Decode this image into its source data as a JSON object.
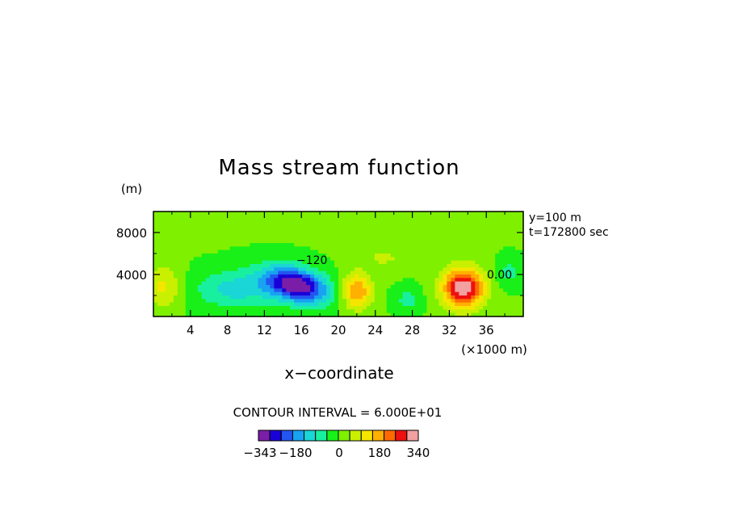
{
  "chart_data": {
    "type": "contour",
    "title": "Mass stream function",
    "xlabel": "x−coordinate",
    "x_unit": "(×1000 m)",
    "ylabel": "(m)",
    "x_ticks": [
      "4",
      "8",
      "12",
      "16",
      "20",
      "24",
      "28",
      "32",
      "36"
    ],
    "x_tick_values": [
      4,
      8,
      12,
      16,
      20,
      24,
      28,
      32,
      36
    ],
    "y_ticks": [
      "4000",
      "8000"
    ],
    "y_tick_values": [
      4000,
      8000
    ],
    "xlim": [
      0,
      40
    ],
    "ylim": [
      0,
      10000
    ],
    "annotations": {
      "right_top": "y=100 m",
      "right_bottom": "t=172800 sec",
      "contour_labels": [
        "−120",
        "0.00"
      ],
      "contour_interval": "CONTOUR INTERVAL = 6.000E+01"
    },
    "features": [
      {
        "x": 15.5,
        "y": 3000,
        "amp": -343,
        "sx": 3.2,
        "sy": 1700,
        "tilt": 0.35
      },
      {
        "x": 9,
        "y": 2600,
        "amp": -120,
        "sx": 4.5,
        "sy": 1800
      },
      {
        "x": 22,
        "y": 2400,
        "amp": 200,
        "sx": 1.6,
        "sy": 1700
      },
      {
        "x": 33.5,
        "y": 2700,
        "amp": 340,
        "sx": 2.2,
        "sy": 1900
      },
      {
        "x": 27.5,
        "y": 1600,
        "amp": -70,
        "sx": 1.4,
        "sy": 1100
      },
      {
        "x": 1,
        "y": 2800,
        "amp": 110,
        "sx": 2.0,
        "sy": 2000
      },
      {
        "x": 38.5,
        "y": 4200,
        "amp": -70,
        "sx": 1.4,
        "sy": 1200
      },
      {
        "x": 4.5,
        "y": 7600,
        "amp": 45,
        "sx": 1.8,
        "sy": 900
      },
      {
        "x": 25,
        "y": 5600,
        "amp": 55,
        "sx": 2.5,
        "sy": 1200
      }
    ],
    "colorbar": {
      "labels": [
        "−343",
        "−180",
        "0",
        "180",
        "340"
      ],
      "min": -343,
      "max": 340,
      "interval": 60,
      "colors": [
        "#7a1ea8",
        "#1a00d8",
        "#2355f0",
        "#18a2f2",
        "#1ad6d6",
        "#18f0a0",
        "#19f019",
        "#7ef000",
        "#c8f000",
        "#f5e600",
        "#ffb000",
        "#ff6a00",
        "#ee1010",
        "#f2a0a0"
      ]
    }
  }
}
